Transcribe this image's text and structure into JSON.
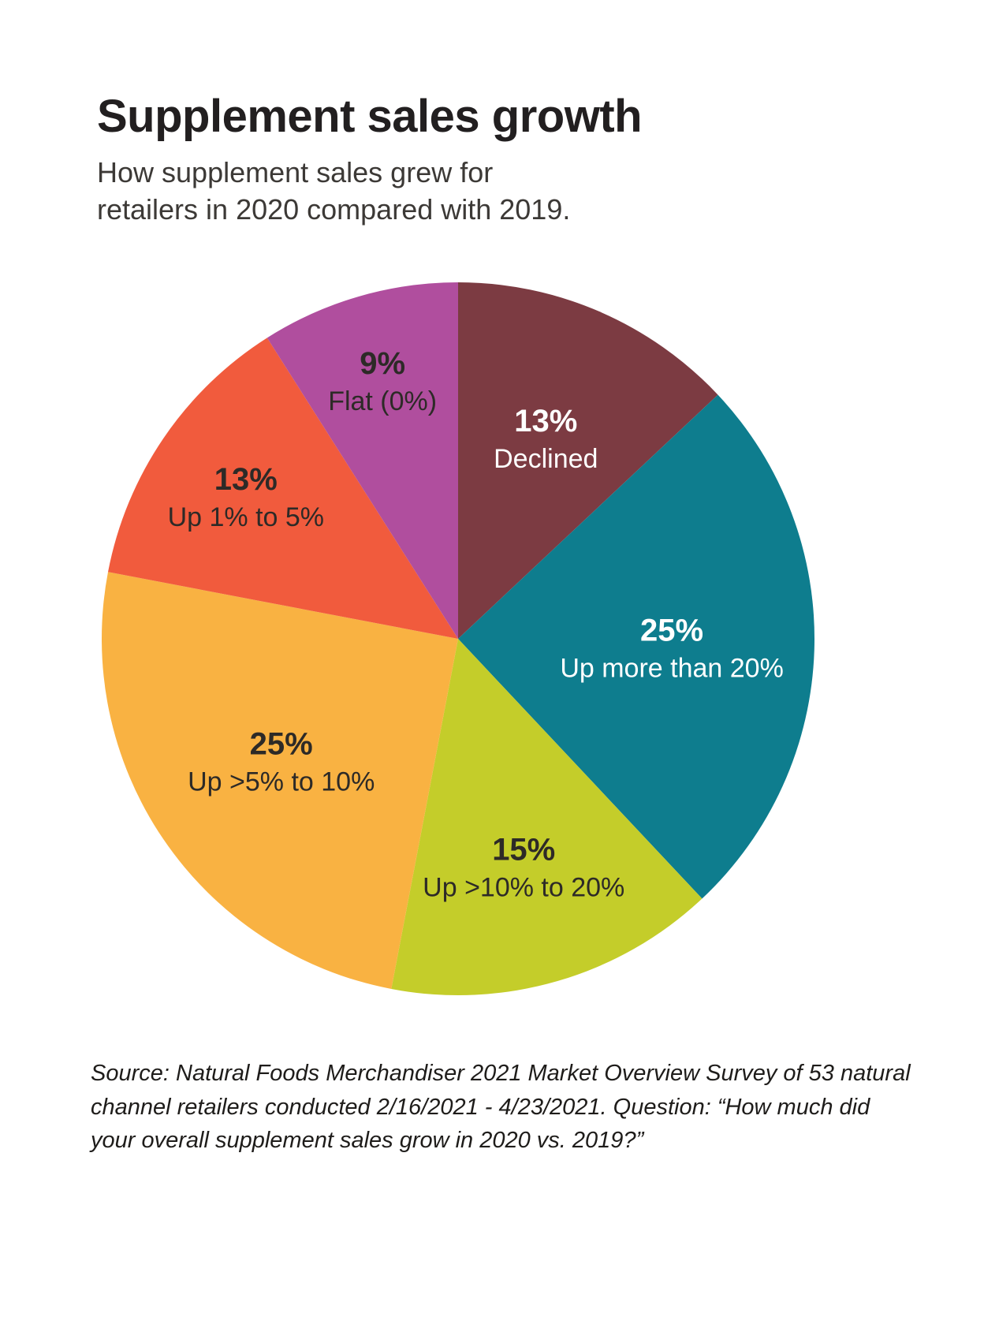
{
  "header": {
    "title": "Supplement sales growth",
    "subtitle": "How supplement sales grew for\nretailers in 2020 compared with 2019."
  },
  "chart_data": {
    "type": "pie",
    "title": "Supplement sales growth",
    "legend": "none",
    "start_angle_deg": 0,
    "direction": "clockwise",
    "slices": [
      {
        "label": "Declined",
        "value": 13,
        "display": "13%",
        "color": "#7c3b42",
        "text_color": "#ffffff",
        "label_r": 0.62
      },
      {
        "label": "Up more than 20%",
        "value": 25,
        "display": "25%",
        "color": "#0e7d8e",
        "text_color": "#ffffff",
        "label_r": 0.6
      },
      {
        "label": "Up >10% to 20%",
        "value": 15,
        "display": "15%",
        "color": "#c4cd2a",
        "text_color": "#2d2a27",
        "label_r": 0.66
      },
      {
        "label": "Up  >5% to 10%",
        "value": 25,
        "display": "25%",
        "color": "#f9b242",
        "text_color": "#2d2a27",
        "label_r": 0.6
      },
      {
        "label": "Up 1% to 5%",
        "value": 13,
        "display": "13%",
        "color": "#f15b3d",
        "text_color": "#2d2a27",
        "label_r": 0.72
      },
      {
        "label": "Flat (0%)",
        "value": 9,
        "display": "9%",
        "color": "#b04e9e",
        "text_color": "#2d2a27",
        "label_r": 0.76
      }
    ]
  },
  "footer": {
    "source": "Source: Natural Foods Merchandiser 2021 Market Overview Survey of 53 natural channel retailers conducted 2/16/2021 - 4/23/2021. Question: “How much did your overall supplement sales grow in 2020 vs. 2019?”"
  }
}
